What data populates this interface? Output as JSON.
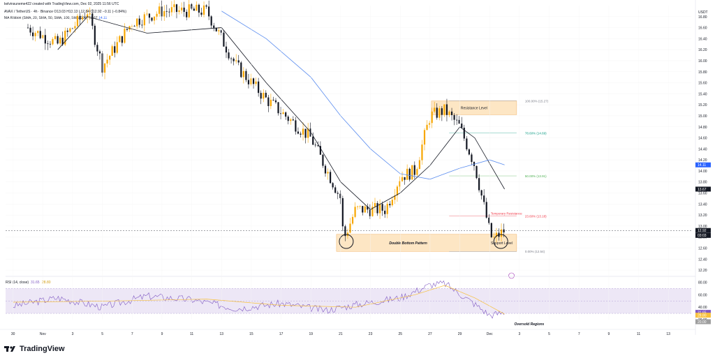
{
  "header": {
    "line1": "kelvinsuneme422 created with TradingView.com, Dec 02, 2025 11:56 UTC",
    "line2": "AVAX / TetherUS · 4h · Binance  O13.03  H13.13  L12.84  C12.92  −0.11 (−0.84%)",
    "line3_label": "MA Ribbon (SMA, 20, SMA, 50, SMA, 100, SMA, 200)",
    "line3_v1": "13.67",
    "line3_v2": "14.11"
  },
  "price_axis": {
    "unit": "USDT",
    "ticks": [
      "16.80",
      "16.60",
      "16.40",
      "16.20",
      "16.00",
      "15.80",
      "15.60",
      "15.40",
      "15.20",
      "15.00",
      "14.80",
      "14.60",
      "14.40",
      "14.20",
      "14.00",
      "13.80",
      "13.60",
      "13.40",
      "13.20",
      "13.00",
      "12.80",
      "12.60",
      "12.40",
      "12.20"
    ],
    "badges": [
      {
        "label": "14.11",
        "value": 14.11,
        "color": "#2962ff"
      },
      {
        "label": "13.67",
        "value": 13.67,
        "color": "#131722"
      },
      {
        "label": "12.92",
        "value": 12.92,
        "color": "#131722"
      },
      {
        "label": "03:03",
        "value": 12.83,
        "color": "#131722"
      }
    ]
  },
  "time_axis": {
    "ticks": [
      "30",
      "Nov",
      "3",
      "5",
      "7",
      "9",
      "11",
      "13",
      "15",
      "17",
      "19",
      "21",
      "23",
      "25",
      "27",
      "29",
      "Dec",
      "3",
      "5",
      "7",
      "9",
      "11",
      "13"
    ]
  },
  "annotations": {
    "resistance_zone": "Resistance Level",
    "support_zone": "Support Level",
    "pattern": "Double Bottom Pattern",
    "temporary_resistance": "Temporary Resistance",
    "oversold": "Oversold Regions",
    "fib_levels": [
      {
        "label": "100.00% (15.27)",
        "value": 15.27,
        "color": "#787b86"
      },
      {
        "label": "78.60% (14.69)",
        "value": 14.69,
        "color": "#089981"
      },
      {
        "label": "50.00% (13.91)",
        "value": 13.91,
        "color": "#4caf50"
      },
      {
        "label": "23.60% (13.18)",
        "value": 13.18,
        "color": "#f23645"
      },
      {
        "label": "0.00% (12.54)",
        "value": 12.54,
        "color": "#787b86"
      }
    ]
  },
  "rsi_panel": {
    "label": "RSI (14, close)",
    "value": "31.65",
    "ma_value": "28.80",
    "ticks": [
      "80.00",
      "60.00",
      "40.00",
      "20.00"
    ],
    "badges": [
      {
        "label": "31.65",
        "color": "#7e57c2"
      },
      {
        "label": "28.80",
        "color": "#f7c03b"
      },
      {
        "label": "20.00",
        "color": "#9e9e9e"
      }
    ]
  },
  "colors": {
    "up": "#f7a600",
    "down": "#131722",
    "ma_fast": "#131722",
    "ma_slow": "#5b8def",
    "zone_fill": "#fde6c4",
    "rsi_line": "#7e57c2",
    "rsi_ma": "#f7c03b",
    "rsi_band": "#ede7f6"
  },
  "brand": "TradingView",
  "chart_data": {
    "type": "candlestick",
    "title": "AVAX / TetherUS · 4h · Binance",
    "ylabel": "USDT",
    "ylim": [
      12.1,
      17.0
    ],
    "anchors": [
      {
        "date": "Oct 31",
        "price": 16.6
      },
      {
        "date": "Nov 2",
        "price": 16.3
      },
      {
        "date": "Nov 4",
        "price": 16.9
      },
      {
        "date": "Nov 5",
        "price": 15.9
      },
      {
        "date": "Nov 7",
        "price": 16.7
      },
      {
        "date": "Nov 9",
        "price": 16.9
      },
      {
        "date": "Nov 12",
        "price": 16.9
      },
      {
        "date": "Nov 14",
        "price": 15.9
      },
      {
        "date": "Nov 16",
        "price": 15.3
      },
      {
        "date": "Nov 19",
        "price": 14.6
      },
      {
        "date": "Nov 21",
        "price": 13.5
      },
      {
        "date": "Nov 21",
        "price": 12.75
      },
      {
        "date": "Nov 22",
        "price": 13.3
      },
      {
        "date": "Nov 24",
        "price": 13.3
      },
      {
        "date": "Nov 25",
        "price": 13.9
      },
      {
        "date": "Nov 26",
        "price": 14.0
      },
      {
        "date": "Nov 27",
        "price": 15.0
      },
      {
        "date": "Nov 28",
        "price": 15.1
      },
      {
        "date": "Nov 29",
        "price": 14.8
      },
      {
        "date": "Nov 30",
        "price": 14.1
      },
      {
        "date": "Dec 1",
        "price": 12.9
      },
      {
        "date": "Dec 1",
        "price": 12.75
      },
      {
        "date": "Dec 2",
        "price": 12.92
      }
    ],
    "ma_fast_anchors": [
      {
        "date": "Nov 2",
        "price": 16.2
      },
      {
        "date": "Nov 4",
        "price": 16.8
      },
      {
        "date": "Nov 8",
        "price": 16.5
      },
      {
        "date": "Nov 13",
        "price": 16.6
      },
      {
        "date": "Nov 16",
        "price": 15.6
      },
      {
        "date": "Nov 19",
        "price": 14.7
      },
      {
        "date": "Nov 21",
        "price": 13.8
      },
      {
        "date": "Nov 23",
        "price": 13.3
      },
      {
        "date": "Nov 25",
        "price": 13.6
      },
      {
        "date": "Nov 27",
        "price": 14.1
      },
      {
        "date": "Nov 29",
        "price": 14.8
      },
      {
        "date": "Nov 30",
        "price": 14.6
      },
      {
        "date": "Dec 2",
        "price": 13.67
      }
    ],
    "ma_slow_anchors": [
      {
        "date": "Nov 13",
        "price": 16.9
      },
      {
        "date": "Nov 16",
        "price": 16.4
      },
      {
        "date": "Nov 19",
        "price": 15.7
      },
      {
        "date": "Nov 21",
        "price": 15.0
      },
      {
        "date": "Nov 23",
        "price": 14.4
      },
      {
        "date": "Nov 25",
        "price": 13.95
      },
      {
        "date": "Nov 27",
        "price": 13.85
      },
      {
        "date": "Nov 29",
        "price": 14.05
      },
      {
        "date": "Dec 1",
        "price": 14.2
      },
      {
        "date": "Dec 2",
        "price": 14.11
      }
    ],
    "rsi": {
      "ylim": [
        20,
        85
      ],
      "anchors": [
        {
          "date": "Oct 30",
          "value": 42
        },
        {
          "date": "Nov 2",
          "value": 55
        },
        {
          "date": "Nov 5",
          "value": 40
        },
        {
          "date": "Nov 8",
          "value": 58
        },
        {
          "date": "Nov 11",
          "value": 52
        },
        {
          "date": "Nov 14",
          "value": 38
        },
        {
          "date": "Nov 17",
          "value": 46
        },
        {
          "date": "Nov 20",
          "value": 35
        },
        {
          "date": "Nov 22",
          "value": 44
        },
        {
          "date": "Nov 25",
          "value": 55
        },
        {
          "date": "Nov 27",
          "value": 76
        },
        {
          "date": "Nov 28",
          "value": 78
        },
        {
          "date": "Nov 30",
          "value": 45
        },
        {
          "date": "Dec 1",
          "value": 27
        },
        {
          "date": "Dec 2",
          "value": 31.65
        }
      ],
      "ma_anchors": [
        {
          "date": "Oct 30",
          "value": 48
        },
        {
          "date": "Nov 6",
          "value": 50
        },
        {
          "date": "Nov 12",
          "value": 53
        },
        {
          "date": "Nov 17",
          "value": 43
        },
        {
          "date": "Nov 22",
          "value": 40
        },
        {
          "date": "Nov 26",
          "value": 60
        },
        {
          "date": "Nov 28",
          "value": 75
        },
        {
          "date": "Nov 30",
          "value": 55
        },
        {
          "date": "Dec 2",
          "value": 28.8
        }
      ]
    }
  }
}
